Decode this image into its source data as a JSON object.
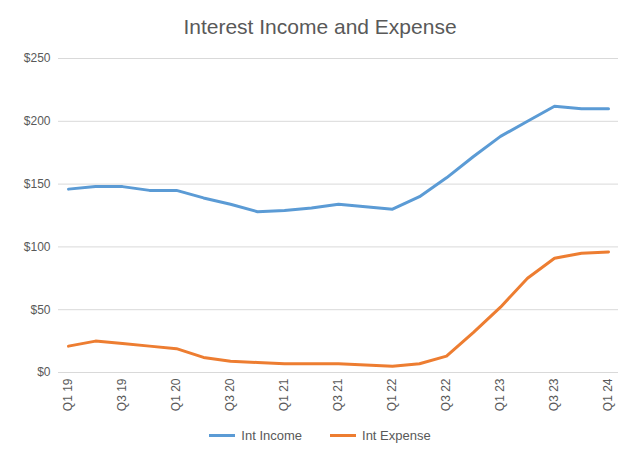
{
  "chart_data": {
    "type": "line",
    "title": "Interest Income and Expense",
    "categories": [
      "Q1 19",
      null,
      "Q3 19",
      null,
      "Q1 20",
      null,
      "Q3 20",
      null,
      "Q1 21",
      null,
      "Q3 21",
      null,
      "Q1 22",
      null,
      "Q3 22",
      null,
      "Q1 23",
      null,
      "Q3 23",
      null,
      "Q1 24"
    ],
    "series": [
      {
        "name": "Int Income",
        "color": "#5b9bd5",
        "values": [
          146,
          148,
          148,
          145,
          145,
          139,
          134,
          128,
          129,
          131,
          134,
          132,
          130,
          140,
          155,
          172,
          188,
          200,
          212,
          210,
          210
        ]
      },
      {
        "name": "Int Expense",
        "color": "#ed7d31",
        "values": [
          21,
          25,
          23,
          21,
          19,
          12,
          9,
          8,
          7,
          7,
          7,
          6,
          5,
          7,
          13,
          32,
          52,
          75,
          91,
          95,
          96
        ]
      }
    ],
    "ylim": [
      0,
      250
    ],
    "yticks": [
      {
        "value": 0,
        "label": "$0"
      },
      {
        "value": 50,
        "label": "$50"
      },
      {
        "value": 100,
        "label": "$100"
      },
      {
        "value": 150,
        "label": "$150"
      },
      {
        "value": 200,
        "label": "$200"
      },
      {
        "value": 250,
        "label": "$250"
      }
    ],
    "grid": true,
    "legend": "bottom"
  }
}
